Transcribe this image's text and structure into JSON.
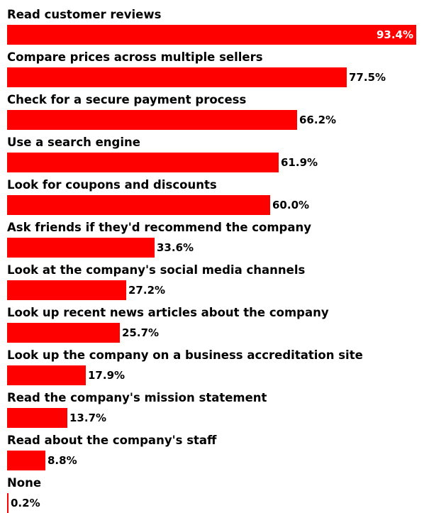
{
  "colors": {
    "bar": "#ff0000",
    "text": "#000000",
    "inside_label": "#ffffff",
    "background": "#ffffff"
  },
  "chart_data": {
    "type": "bar",
    "orientation": "horizontal",
    "grid": false,
    "xlim": [
      0,
      100
    ],
    "unit": "%",
    "categories": [
      "Read customer reviews",
      "Compare prices across multiple sellers",
      "Check for a secure payment process",
      "Use a search engine",
      "Look for coupons and discounts",
      "Ask friends if they'd recommend the company",
      "Look at the company's social media channels",
      "Look up recent news articles about the company",
      "Look up the company on a business accreditation site",
      "Read the company's mission statement",
      "Read about the company's staff",
      "None"
    ],
    "values": [
      93.4,
      77.5,
      66.2,
      61.9,
      60.0,
      33.6,
      27.2,
      25.7,
      17.9,
      13.7,
      8.8,
      0.2
    ],
    "value_labels": [
      "93.4%",
      "77.5%",
      "66.2%",
      "61.9%",
      "60.0%",
      "33.6%",
      "27.2%",
      "25.7%",
      "17.9%",
      "13.7%",
      "8.8%",
      "0.2%"
    ]
  }
}
